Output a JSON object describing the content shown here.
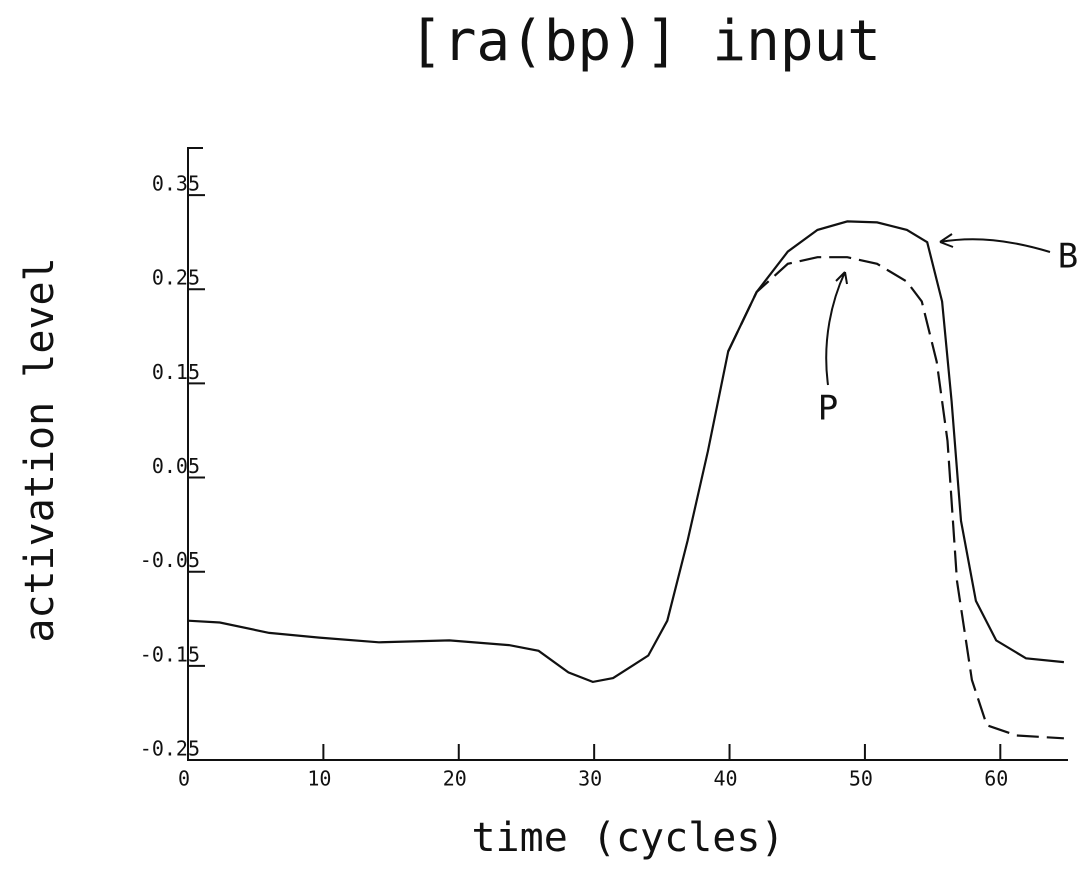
{
  "chart_data": {
    "type": "line",
    "title": "[ra(bp)] input",
    "x_label": "time (cycles)",
    "y_label": "activation level",
    "xlim": [
      0,
      65
    ],
    "ylim": [
      -0.25,
      0.4
    ],
    "xticks": [
      0,
      10,
      20,
      30,
      40,
      50,
      60
    ],
    "yticks": [
      -0.25,
      -0.15,
      -0.05,
      0.05,
      0.15,
      0.25,
      0.35
    ],
    "grid": false,
    "series": [
      {
        "name": "B",
        "color": "#111111",
        "dashed": false,
        "x": [
          0,
          2.35,
          6,
          9.7,
          14.1,
          19.3,
          23.7,
          25.9,
          28.1,
          29.9,
          31.4,
          34,
          35.4,
          36.9,
          38.4,
          39.9,
          42,
          44.3,
          46.5,
          48.7,
          50.9,
          53.1,
          54.6,
          55.7,
          56.4,
          57.1,
          58.2,
          59.7,
          61.9,
          64.7
        ],
        "values": [
          -0.102,
          -0.104,
          -0.115,
          -0.12,
          -0.125,
          -0.123,
          -0.128,
          -0.134,
          -0.157,
          -0.167,
          -0.163,
          -0.139,
          -0.102,
          -0.017,
          0.078,
          0.184,
          0.247,
          0.29,
          0.313,
          0.322,
          0.321,
          0.313,
          0.3,
          0.237,
          0.131,
          0.004,
          -0.081,
          -0.123,
          -0.142,
          -0.146
        ]
      },
      {
        "name": "P",
        "color": "#111111",
        "dashed": true,
        "x": [
          39.9,
          42,
          44.3,
          46.5,
          48.7,
          50.9,
          53.1,
          54.2,
          55.3,
          56.1,
          56.8,
          57.9,
          59,
          61.2,
          64.7
        ],
        "values": [
          0.184,
          0.247,
          0.277,
          0.284,
          0.284,
          0.277,
          0.258,
          0.237,
          0.173,
          0.089,
          -0.06,
          -0.165,
          -0.213,
          -0.224,
          -0.227
        ]
      }
    ]
  }
}
